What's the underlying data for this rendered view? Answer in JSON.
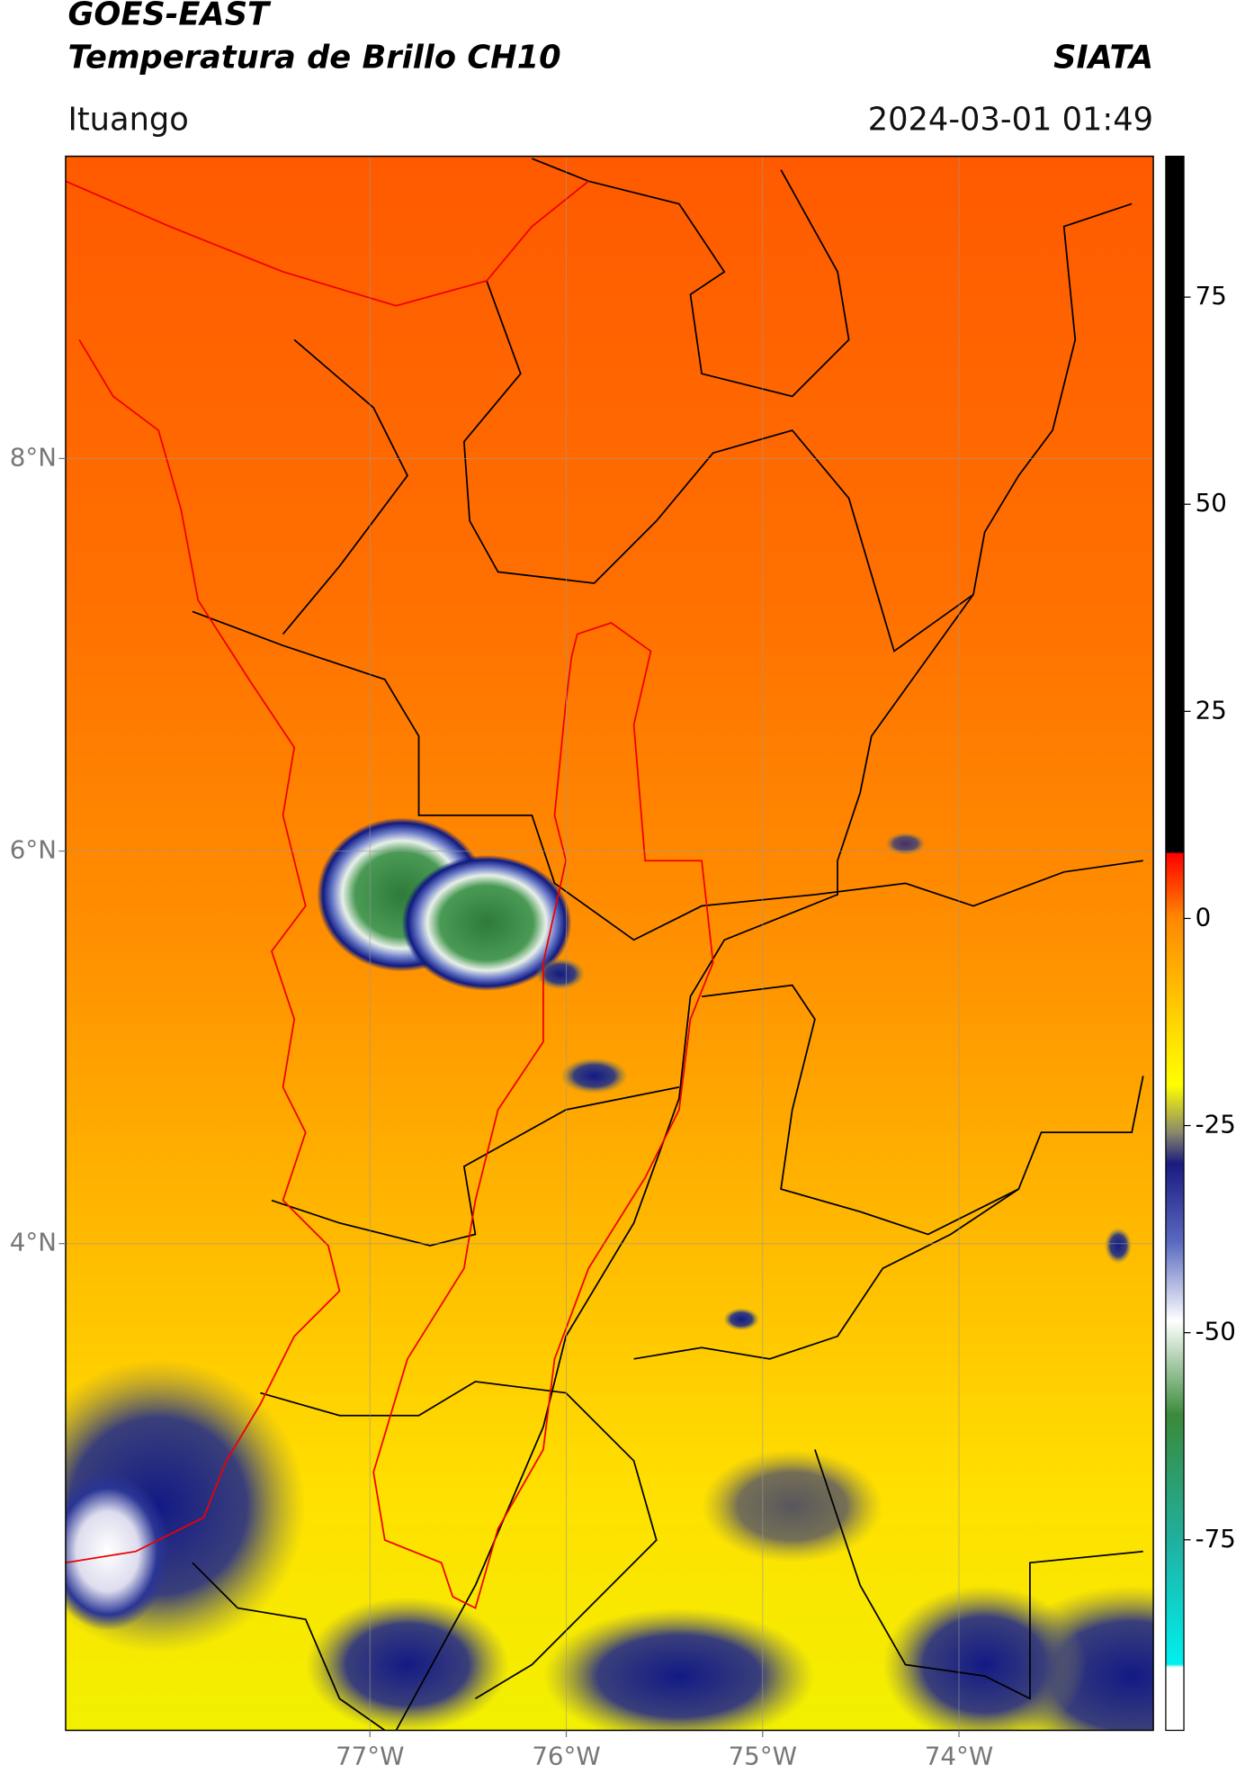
{
  "header": {
    "title": "GOES-EAST",
    "subtitle": "Temperatura de Brillo CH10",
    "source": "SIATA",
    "location": "Ituango",
    "datetime": "2024-03-01 01:49"
  },
  "map": {
    "xlim": [
      -78.55,
      -73.01
    ],
    "ylim": [
      1.52,
      9.54
    ],
    "xticks": [
      {
        "value": -77,
        "label": "77°W"
      },
      {
        "value": -76,
        "label": "76°W"
      },
      {
        "value": -75,
        "label": "75°W"
      },
      {
        "value": -74,
        "label": "74°W"
      }
    ],
    "yticks": [
      {
        "value": 8,
        "label": "8°N"
      },
      {
        "value": 6,
        "label": "6°N"
      },
      {
        "value": 4,
        "label": "4°N"
      }
    ]
  },
  "colorbar": {
    "lim": [
      -98,
      92
    ],
    "ticks": [
      75,
      50,
      25,
      0,
      -25,
      -50,
      -75
    ]
  }
}
